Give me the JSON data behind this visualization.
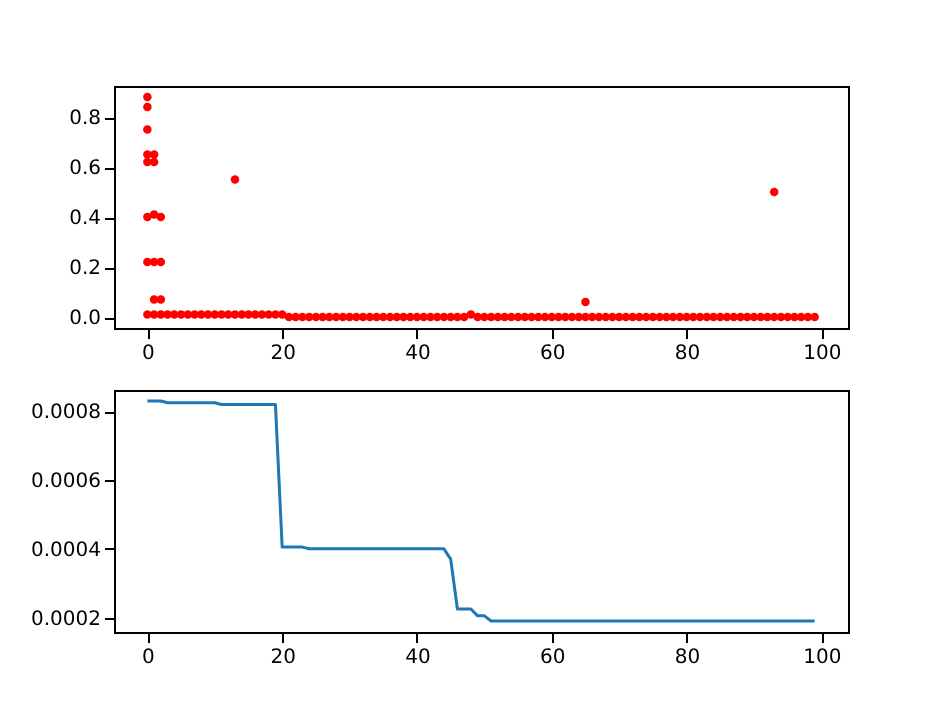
{
  "chart_data": [
    {
      "type": "scatter",
      "marker": "circle",
      "xlim": [
        -4.95,
        103.95
      ],
      "xticks": [
        0,
        20,
        40,
        60,
        80,
        100
      ],
      "ylim": [
        -0.044,
        0.924
      ],
      "yticks": [
        {
          "value": 0,
          "label": "0.0"
        },
        0.2,
        0.4,
        0.6,
        0.8
      ],
      "series": [
        {
          "color": "#ff0000",
          "x": [
            0,
            1,
            2,
            3,
            4,
            5,
            6,
            7,
            8,
            9,
            10,
            11,
            12,
            13,
            14,
            15,
            16,
            17,
            18,
            19,
            20,
            21,
            22,
            23,
            24,
            25,
            26,
            27,
            28,
            29,
            30,
            31,
            32,
            33,
            34,
            35,
            36,
            37,
            38,
            39,
            40,
            41,
            42,
            43,
            44,
            45,
            46,
            47,
            48,
            49,
            50,
            51,
            52,
            53,
            54,
            55,
            56,
            57,
            58,
            59,
            60,
            61,
            62,
            63,
            64,
            65,
            66,
            67,
            68,
            69,
            70,
            71,
            72,
            73,
            74,
            75,
            76,
            77,
            78,
            79,
            80,
            81,
            82,
            83,
            84,
            85,
            86,
            87,
            88,
            89,
            90,
            91,
            92,
            93,
            94,
            95,
            96,
            97,
            98,
            99,
            0,
            0,
            0,
            0,
            0,
            0,
            0,
            1,
            1,
            1,
            1,
            1,
            2,
            2,
            2,
            13,
            65,
            93
          ],
          "values": [
            0.01,
            0.01,
            0.01,
            0.01,
            0.01,
            0.01,
            0.01,
            0.01,
            0.01,
            0.01,
            0.01,
            0.01,
            0.01,
            0.01,
            0.01,
            0.01,
            0.01,
            0.01,
            0.01,
            0.01,
            0.01,
            0,
            0,
            0,
            0,
            0,
            0,
            0,
            0,
            0,
            0,
            0,
            0,
            0,
            0,
            0,
            0,
            0,
            0,
            0,
            0,
            0,
            0,
            0,
            0,
            0,
            0,
            0,
            0.01,
            0,
            0,
            0,
            0,
            0,
            0,
            0,
            0,
            0,
            0,
            0,
            0,
            0,
            0,
            0,
            0,
            0,
            0,
            0,
            0,
            0,
            0,
            0,
            0,
            0,
            0,
            0,
            0,
            0,
            0,
            0,
            0,
            0,
            0,
            0,
            0,
            0,
            0,
            0,
            0,
            0,
            0,
            0,
            0,
            0,
            0,
            0,
            0,
            0,
            0,
            0,
            0.88,
            0.84,
            0.75,
            0.65,
            0.62,
            0.4,
            0.22,
            0.65,
            0.62,
            0.41,
            0.22,
            0.07,
            0.4,
            0.22,
            0.07,
            0.55,
            0.06,
            0.5
          ]
        }
      ]
    },
    {
      "type": "line",
      "xlim": [
        -4.95,
        103.95
      ],
      "xticks": [
        0,
        20,
        40,
        60,
        80,
        100
      ],
      "ylim": [
        0.000158,
        0.000862
      ],
      "yticks": [
        0.0002,
        0.0004,
        0.0006,
        0.0008
      ],
      "series": [
        {
          "color": "#1f77b4",
          "x": [
            0,
            2,
            3,
            10,
            11,
            19,
            20,
            23,
            24,
            44,
            45,
            46,
            48,
            49,
            50,
            51,
            99
          ],
          "values": [
            0.00083,
            0.00083,
            0.000825,
            0.000825,
            0.00082,
            0.00082,
            0.000405,
            0.000405,
            0.0004,
            0.0004,
            0.00037,
            0.000225,
            0.000225,
            0.000205,
            0.000205,
            0.00019,
            0.00019
          ]
        }
      ]
    }
  ]
}
